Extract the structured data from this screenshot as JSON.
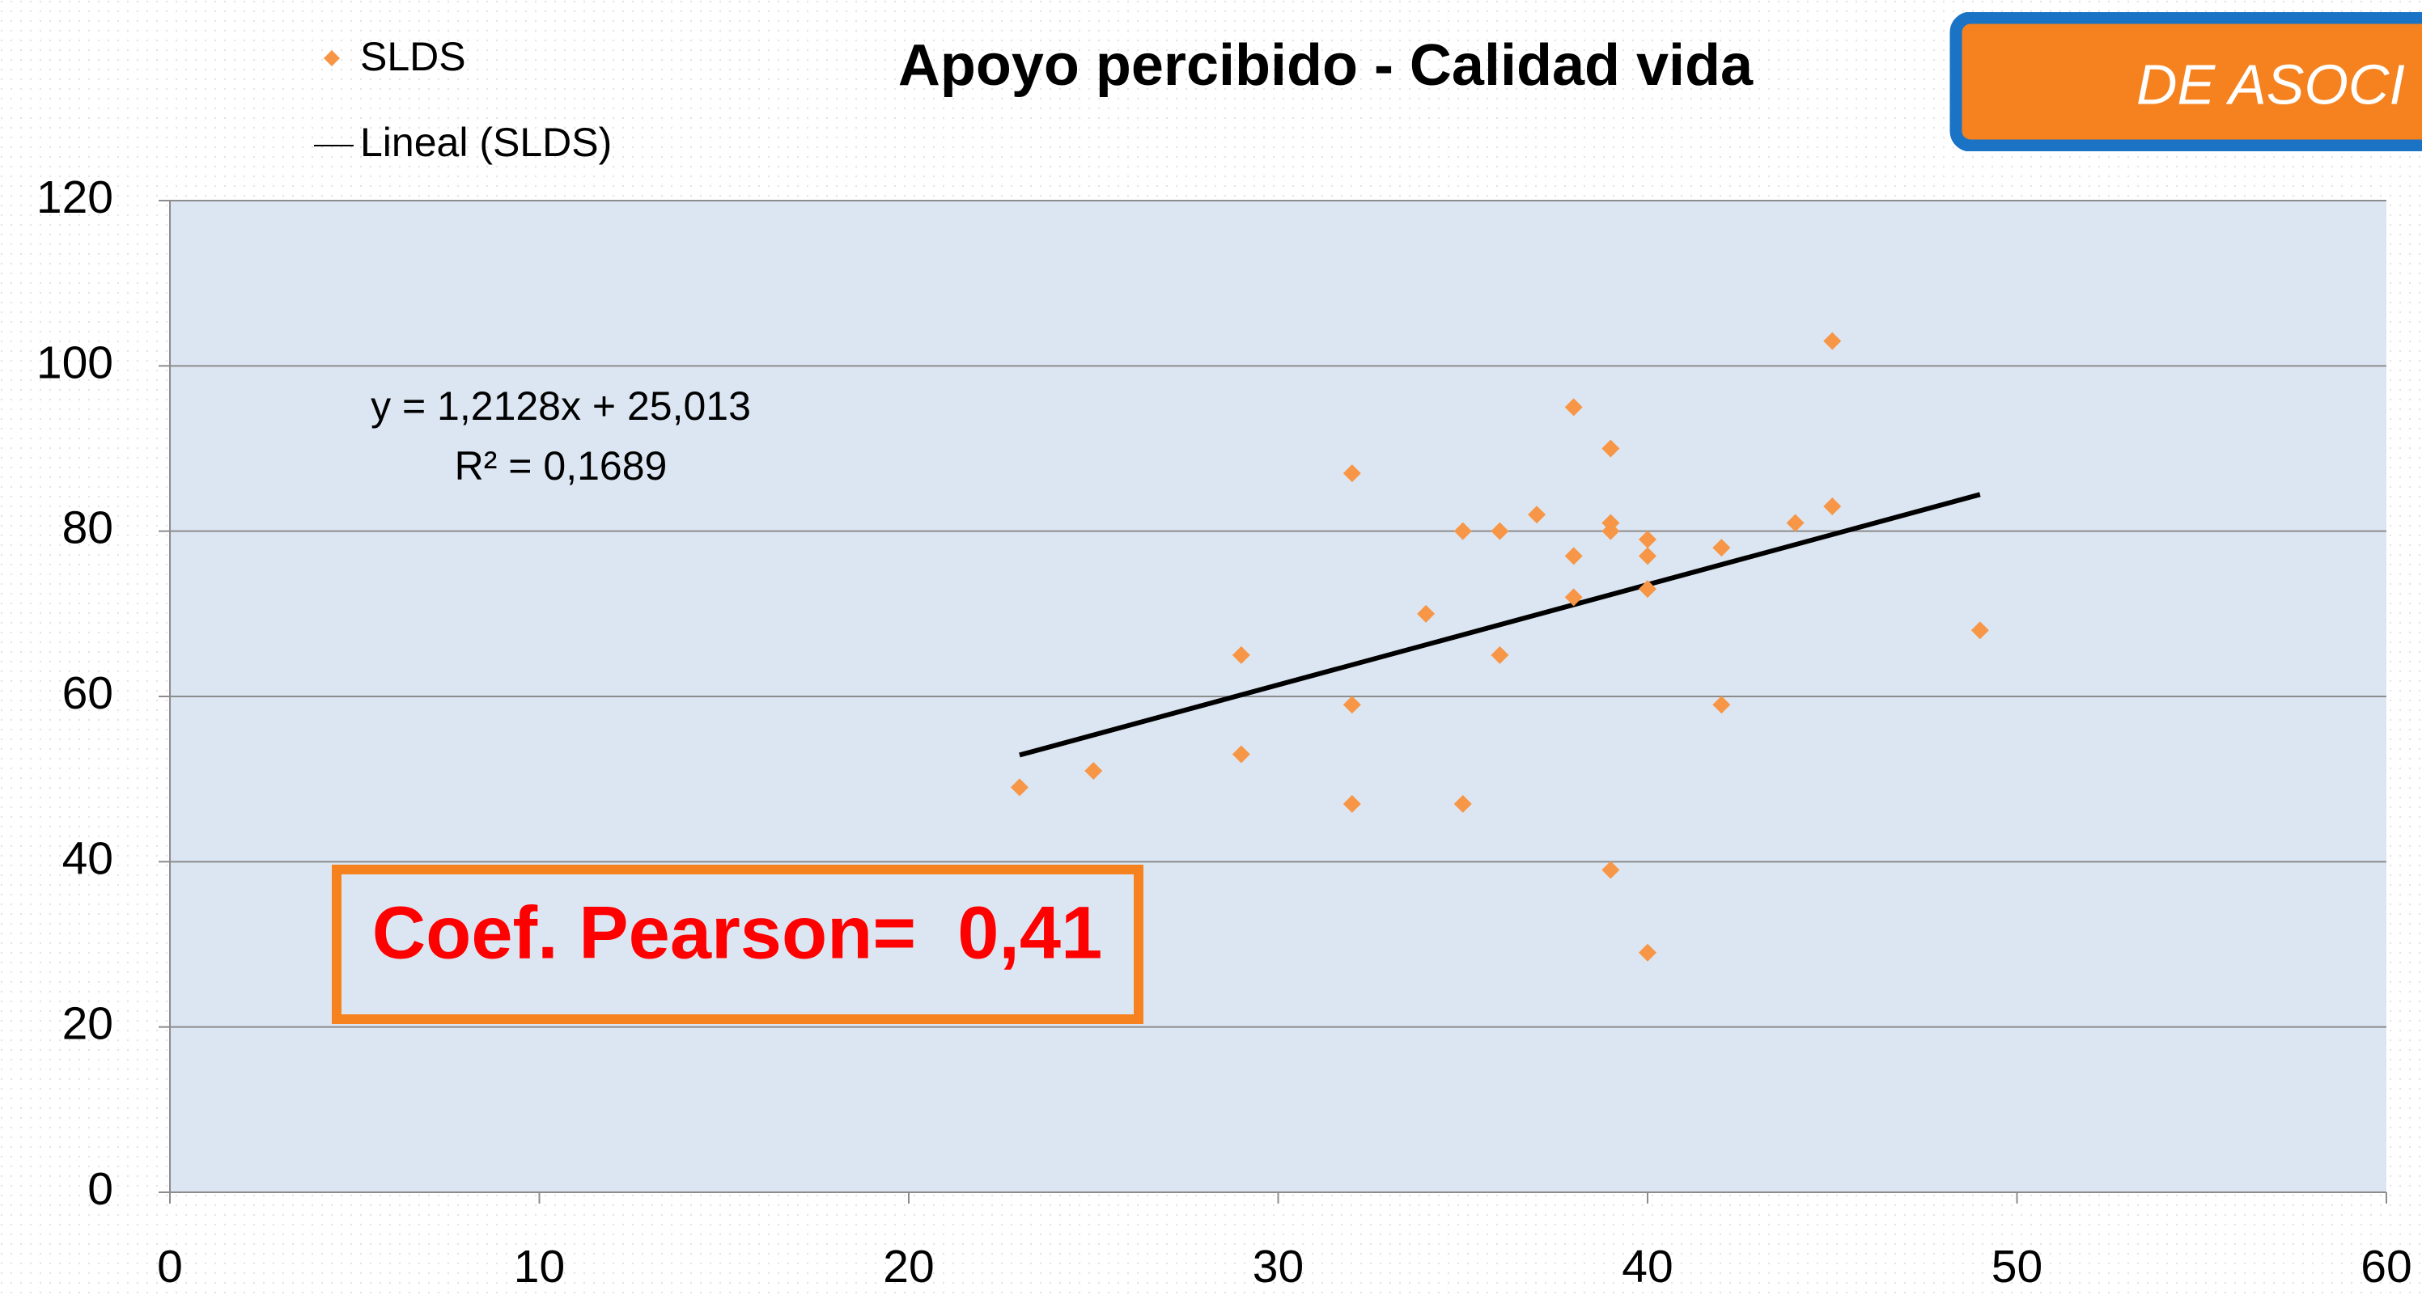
{
  "chart_data": {
    "type": "scatter",
    "title": "Apoyo percibido - Calidad vida",
    "badge": "DE ASOCI",
    "annotations": [
      "y = 1,2128x + 25,013",
      "R² = 0,1689",
      "Coef. Pearson=  0,41"
    ],
    "series": [
      {
        "name": "SLDS",
        "color": "#f79646",
        "x": [
          23,
          25,
          29,
          29,
          32,
          32,
          32,
          34,
          35,
          35,
          36,
          36,
          37,
          38,
          38,
          38,
          39,
          39,
          39,
          39,
          40,
          40,
          40,
          40,
          42,
          42,
          44,
          45,
          45,
          49
        ],
        "values": [
          49,
          51,
          65,
          53,
          87,
          59,
          47,
          70,
          80,
          47,
          80,
          65,
          82,
          95,
          77,
          72,
          90,
          81,
          80,
          39,
          79,
          77,
          73,
          29,
          78,
          59,
          81,
          103,
          83,
          68
        ]
      },
      {
        "name": "Lineal (SLDS)",
        "color": "#000000",
        "x": [
          23,
          49
        ],
        "values": [
          52.91,
          84.44
        ]
      }
    ],
    "xlim": [
      0,
      60
    ],
    "xticks": [
      0,
      10,
      20,
      30,
      40,
      50,
      60
    ],
    "ylim": [
      0,
      120
    ],
    "yticks": [
      0,
      20,
      40,
      60,
      80,
      100,
      120
    ],
    "grid": true
  }
}
